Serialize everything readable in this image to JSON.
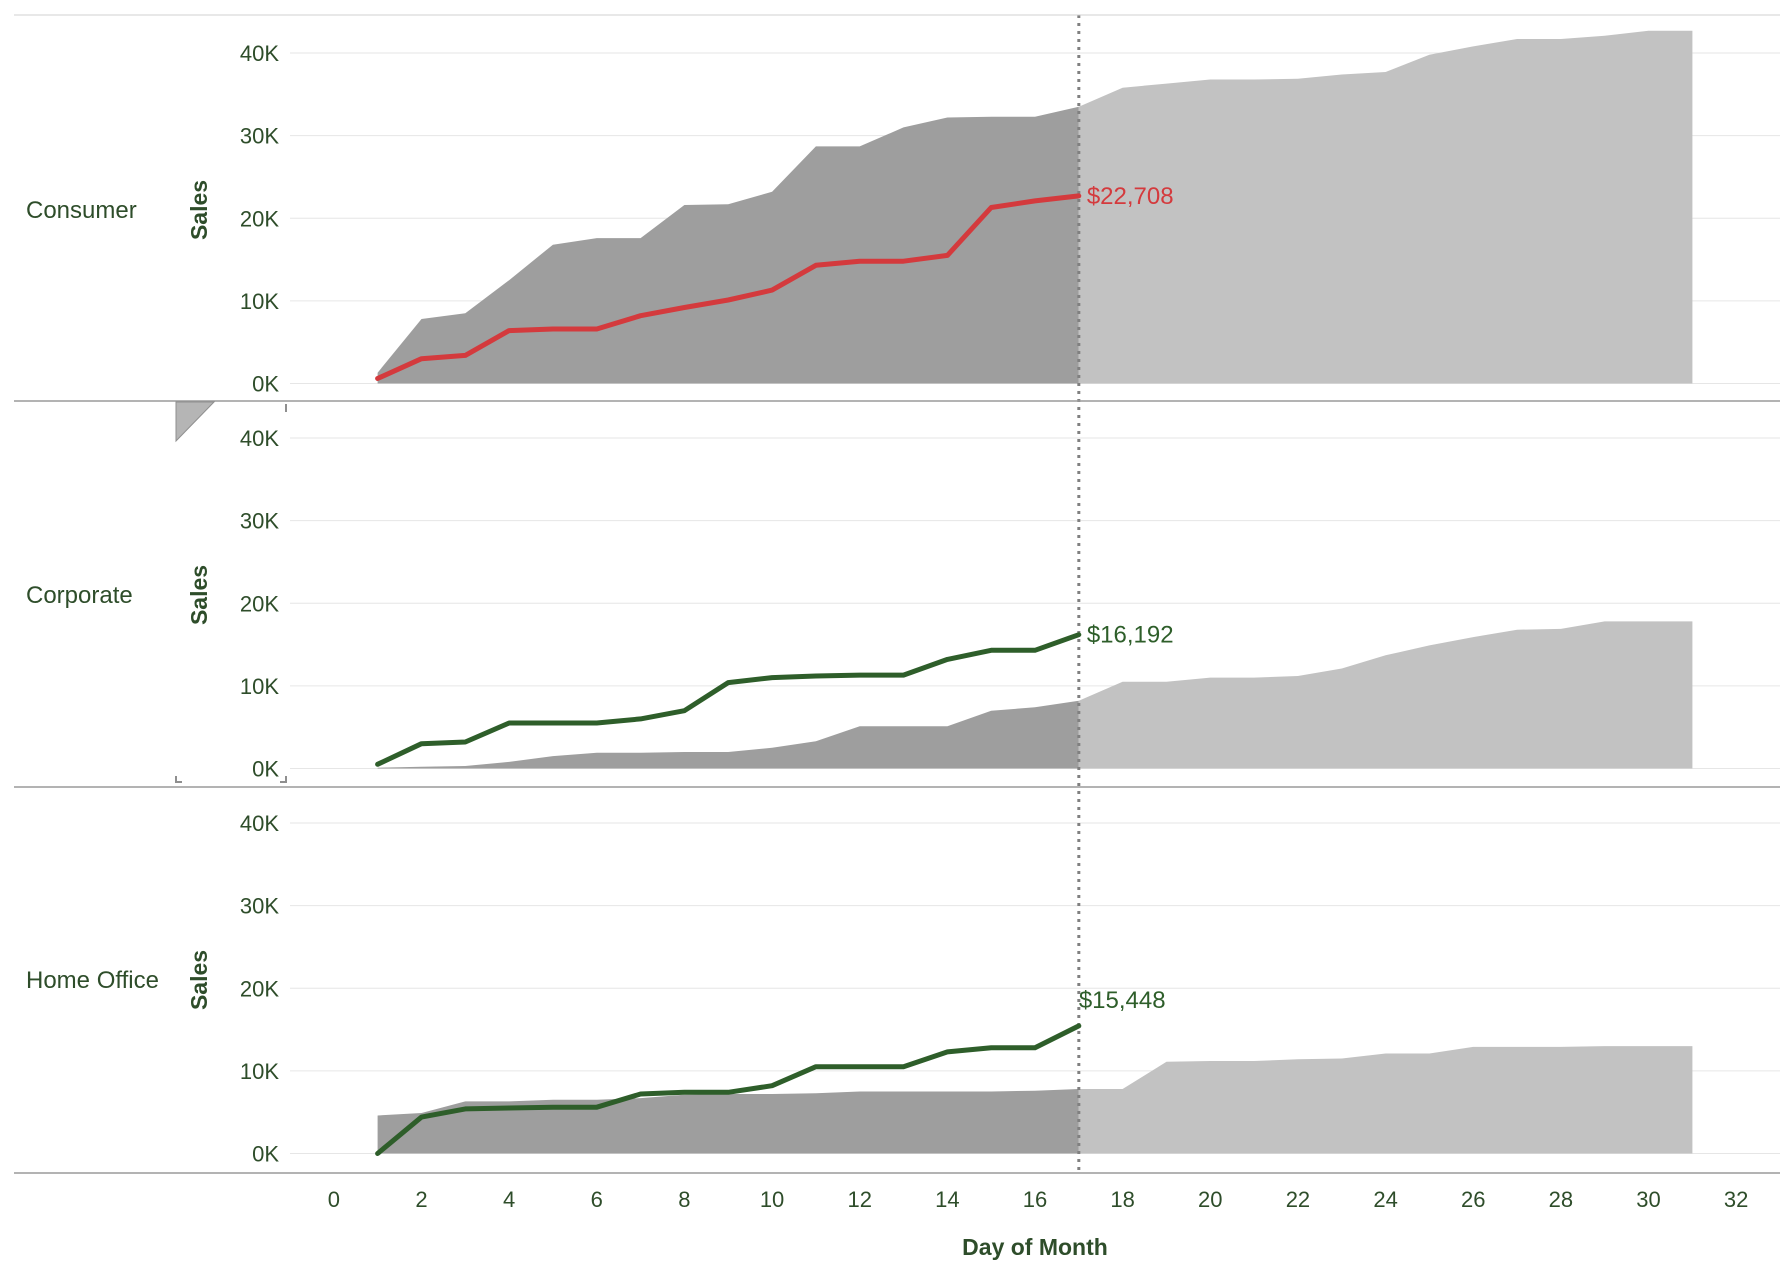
{
  "colors": {
    "current_month_line": "#d43a3d",
    "other_line": "#2e5e2a",
    "prior_area_through_today": "#9e9e9e",
    "prior_area_rest_of_month": "#c2c2c2",
    "text": "#2e4d2a",
    "gridline": "#e6e6e6",
    "reference_line": "#808080"
  },
  "chart_data": {
    "type": "area",
    "x_axis": {
      "label": "Day of Month",
      "range": [
        -1,
        33
      ],
      "ticks": [
        "0",
        "2",
        "4",
        "6",
        "8",
        "10",
        "12",
        "14",
        "16",
        "18",
        "20",
        "22",
        "24",
        "26",
        "28",
        "30",
        "32"
      ]
    },
    "y_axis": {
      "label": "Sales",
      "range": [
        -2000,
        44000
      ],
      "ticks": [
        {
          "value": 0,
          "label": "0K"
        },
        {
          "value": 10000,
          "label": "10K"
        },
        {
          "value": 20000,
          "label": "20K"
        },
        {
          "value": 30000,
          "label": "30K"
        },
        {
          "value": 40000,
          "label": "40K"
        }
      ]
    },
    "reference_day": 17,
    "grid": true,
    "panels": [
      {
        "segment": "Consumer",
        "line_color_key": "current_month_line",
        "end_label": "$22,708",
        "line": {
          "x": [
            1,
            2,
            3,
            4,
            5,
            6,
            7,
            8,
            9,
            10,
            11,
            12,
            13,
            14,
            15,
            16,
            17
          ],
          "y": [
            600,
            3000,
            3400,
            6400,
            6600,
            6600,
            8200,
            9200,
            10100,
            11300,
            14300,
            14800,
            14800,
            15500,
            21300,
            22100,
            22708
          ]
        },
        "area": {
          "x": [
            1,
            2,
            3,
            4,
            5,
            6,
            7,
            8,
            9,
            10,
            11,
            12,
            13,
            14,
            15,
            16,
            17,
            18,
            19,
            20,
            21,
            22,
            23,
            24,
            25,
            26,
            27,
            28,
            29,
            30,
            31
          ],
          "y": [
            1300,
            7800,
            8500,
            12500,
            16800,
            17600,
            17600,
            21600,
            21700,
            23200,
            28700,
            28700,
            31000,
            32200,
            32300,
            32300,
            33500,
            35800,
            36300,
            36800,
            36800,
            36900,
            37400,
            37700,
            39800,
            40800,
            41700,
            41700,
            42100,
            42700,
            42700
          ]
        }
      },
      {
        "segment": "Corporate",
        "line_color_key": "other_line",
        "end_label": "$16,192",
        "line": {
          "x": [
            1,
            2,
            3,
            4,
            5,
            6,
            7,
            8,
            9,
            10,
            11,
            12,
            13,
            14,
            15,
            16,
            17
          ],
          "y": [
            500,
            3000,
            3200,
            5500,
            5500,
            5500,
            6000,
            7000,
            10400,
            11000,
            11200,
            11300,
            11300,
            13200,
            14300,
            14300,
            16192
          ]
        },
        "area": {
          "x": [
            1,
            2,
            3,
            4,
            5,
            6,
            7,
            8,
            9,
            10,
            11,
            12,
            13,
            14,
            15,
            16,
            17,
            18,
            19,
            20,
            21,
            22,
            23,
            24,
            25,
            26,
            27,
            28,
            29,
            30,
            31
          ],
          "y": [
            100,
            200,
            300,
            800,
            1500,
            1900,
            1900,
            2000,
            2000,
            2500,
            3300,
            5100,
            5100,
            5100,
            7000,
            7400,
            8200,
            10500,
            10500,
            11000,
            11000,
            11200,
            12100,
            13700,
            14900,
            15900,
            16800,
            16900,
            17800,
            17800,
            17800
          ]
        }
      },
      {
        "segment": "Home Office",
        "line_color_key": "other_line",
        "end_label": "$15,448",
        "line": {
          "x": [
            1,
            2,
            3,
            4,
            5,
            6,
            7,
            8,
            9,
            10,
            11,
            12,
            13,
            14,
            15,
            16,
            17
          ],
          "y": [
            0,
            4400,
            5400,
            5500,
            5600,
            5600,
            7200,
            7400,
            7400,
            8200,
            10500,
            10500,
            10500,
            12300,
            12800,
            12800,
            15448
          ]
        },
        "area": {
          "x": [
            1,
            2,
            3,
            4,
            5,
            6,
            7,
            8,
            9,
            10,
            11,
            12,
            13,
            14,
            15,
            16,
            17,
            18,
            19,
            20,
            21,
            22,
            23,
            24,
            25,
            26,
            27,
            28,
            29,
            30,
            31
          ],
          "y": [
            4600,
            4900,
            6300,
            6300,
            6500,
            6500,
            6700,
            7100,
            7200,
            7200,
            7300,
            7500,
            7500,
            7500,
            7500,
            7600,
            7800,
            7800,
            11100,
            11200,
            11200,
            11400,
            11500,
            12100,
            12100,
            12900,
            12900,
            12900,
            13000,
            13000,
            13000
          ]
        }
      }
    ]
  }
}
